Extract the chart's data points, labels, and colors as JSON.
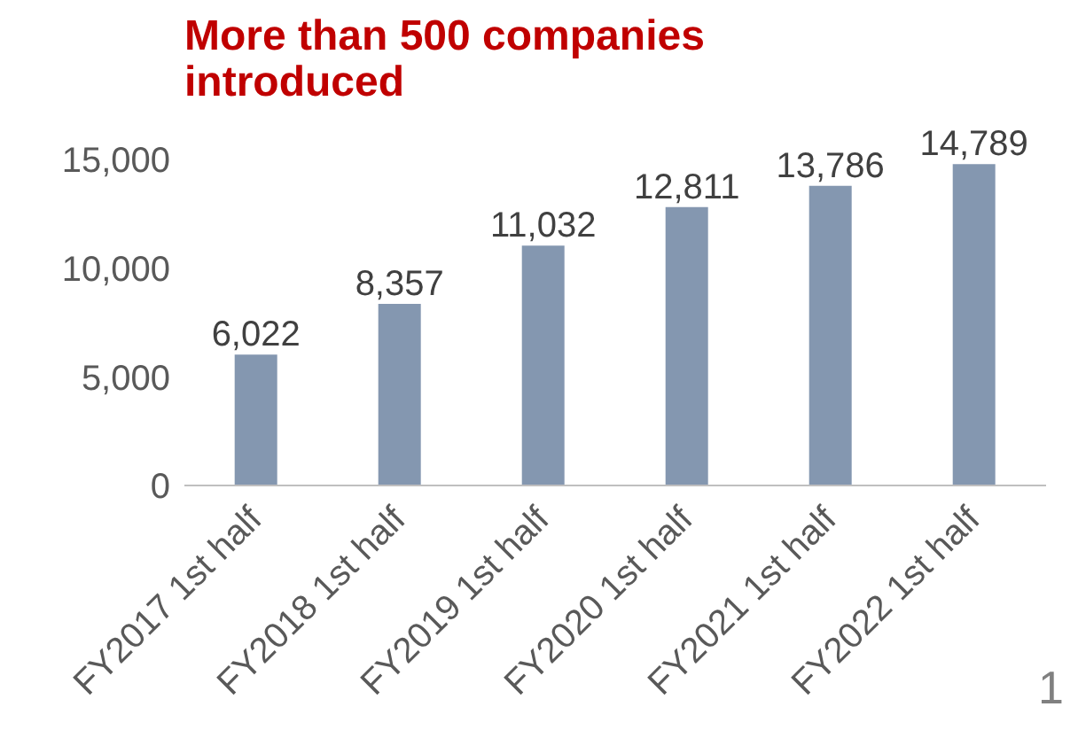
{
  "chart_data": {
    "type": "bar",
    "title": "More than 500 companies introduced",
    "categories": [
      "FY2017 1st half",
      "FY2018 1st half",
      "FY2019 1st half",
      "FY2020 1st half",
      "FY2021 1st half",
      "FY2022 1st half"
    ],
    "values": [
      6022,
      8357,
      11032,
      12811,
      13786,
      14789
    ],
    "color": "#8497b0",
    "ylim": [
      0,
      15000
    ],
    "yticks": [
      {
        "value": 0,
        "label": "0"
      },
      {
        "value": 5000,
        "label": "5,000"
      },
      {
        "value": 10000,
        "label": "10,000"
      },
      {
        "value": 15000,
        "label": "15,000"
      }
    ],
    "value_labels": [
      "6,022",
      "8,357",
      "11,032",
      "12,811",
      "13,786",
      "14,789"
    ],
    "grid": false,
    "annotations": [
      "1"
    ]
  }
}
